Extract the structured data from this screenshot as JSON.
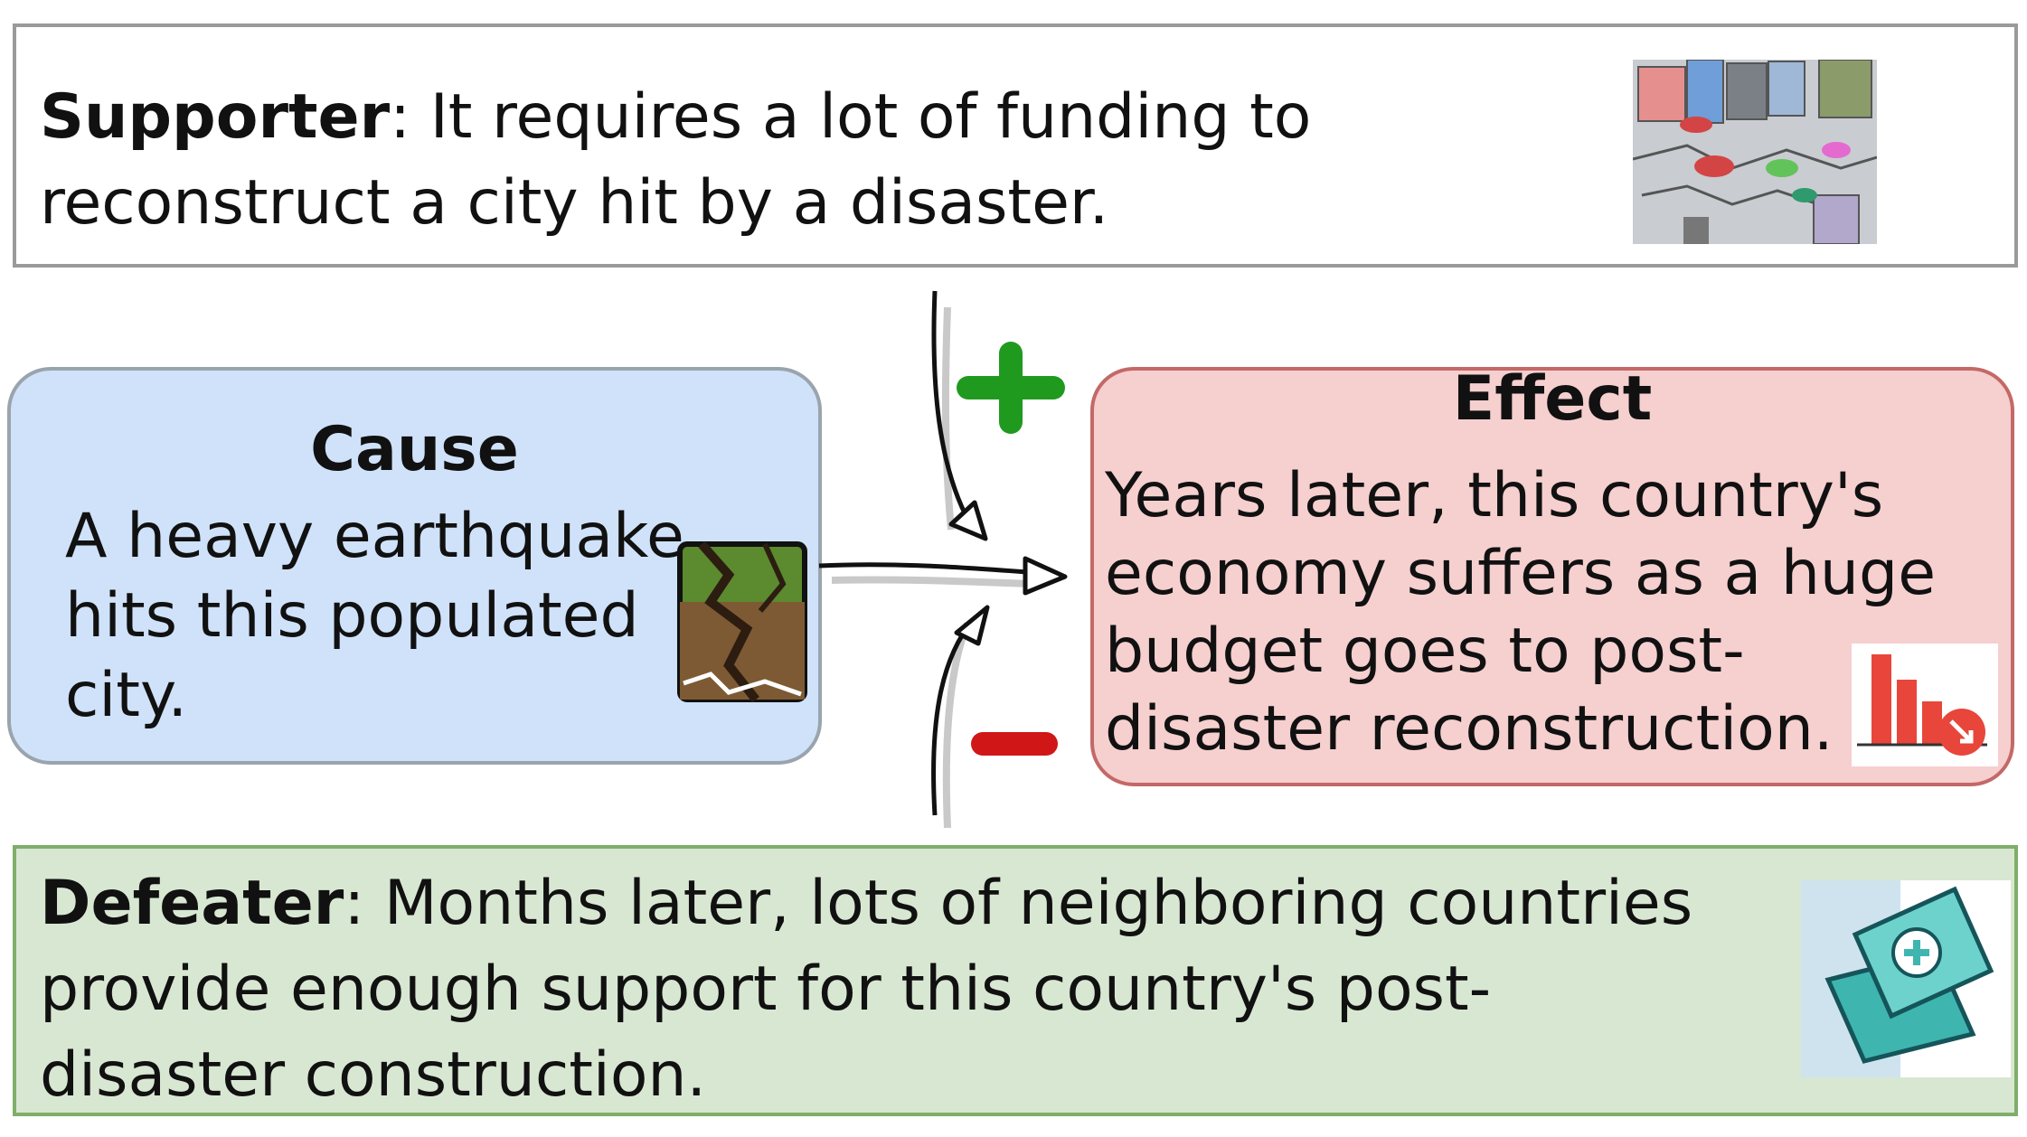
{
  "supporter": {
    "label": "Supporter",
    "text": "It requires a lot of funding to reconstruct a city hit by a disaster.",
    "image": "city-disaster-illustration"
  },
  "cause": {
    "title": "Cause",
    "text": "A heavy earthquake hits this populated city.",
    "image": "earthquake-crack-illustration"
  },
  "effect": {
    "title": "Effect",
    "text": "Years later, this country's economy suffers as a huge budget goes to post-disaster reconstruction.",
    "image": "declining-bar-chart-icon"
  },
  "defeater": {
    "label": "Defeater",
    "text": "Months later, lots of neighboring countries provide enough support for this country's post-disaster construction.",
    "image": "first-aid-kit-illustration"
  },
  "signs": {
    "plus": "+",
    "minus": "−"
  },
  "colors": {
    "supporter_border": "#9a9a9a",
    "cause_fill": "#cfe2f9",
    "effect_fill": "#f6cfcf",
    "defeater_fill": "#d8e7d2",
    "plus_color": "#1f9a1f",
    "minus_color": "#d01616"
  }
}
